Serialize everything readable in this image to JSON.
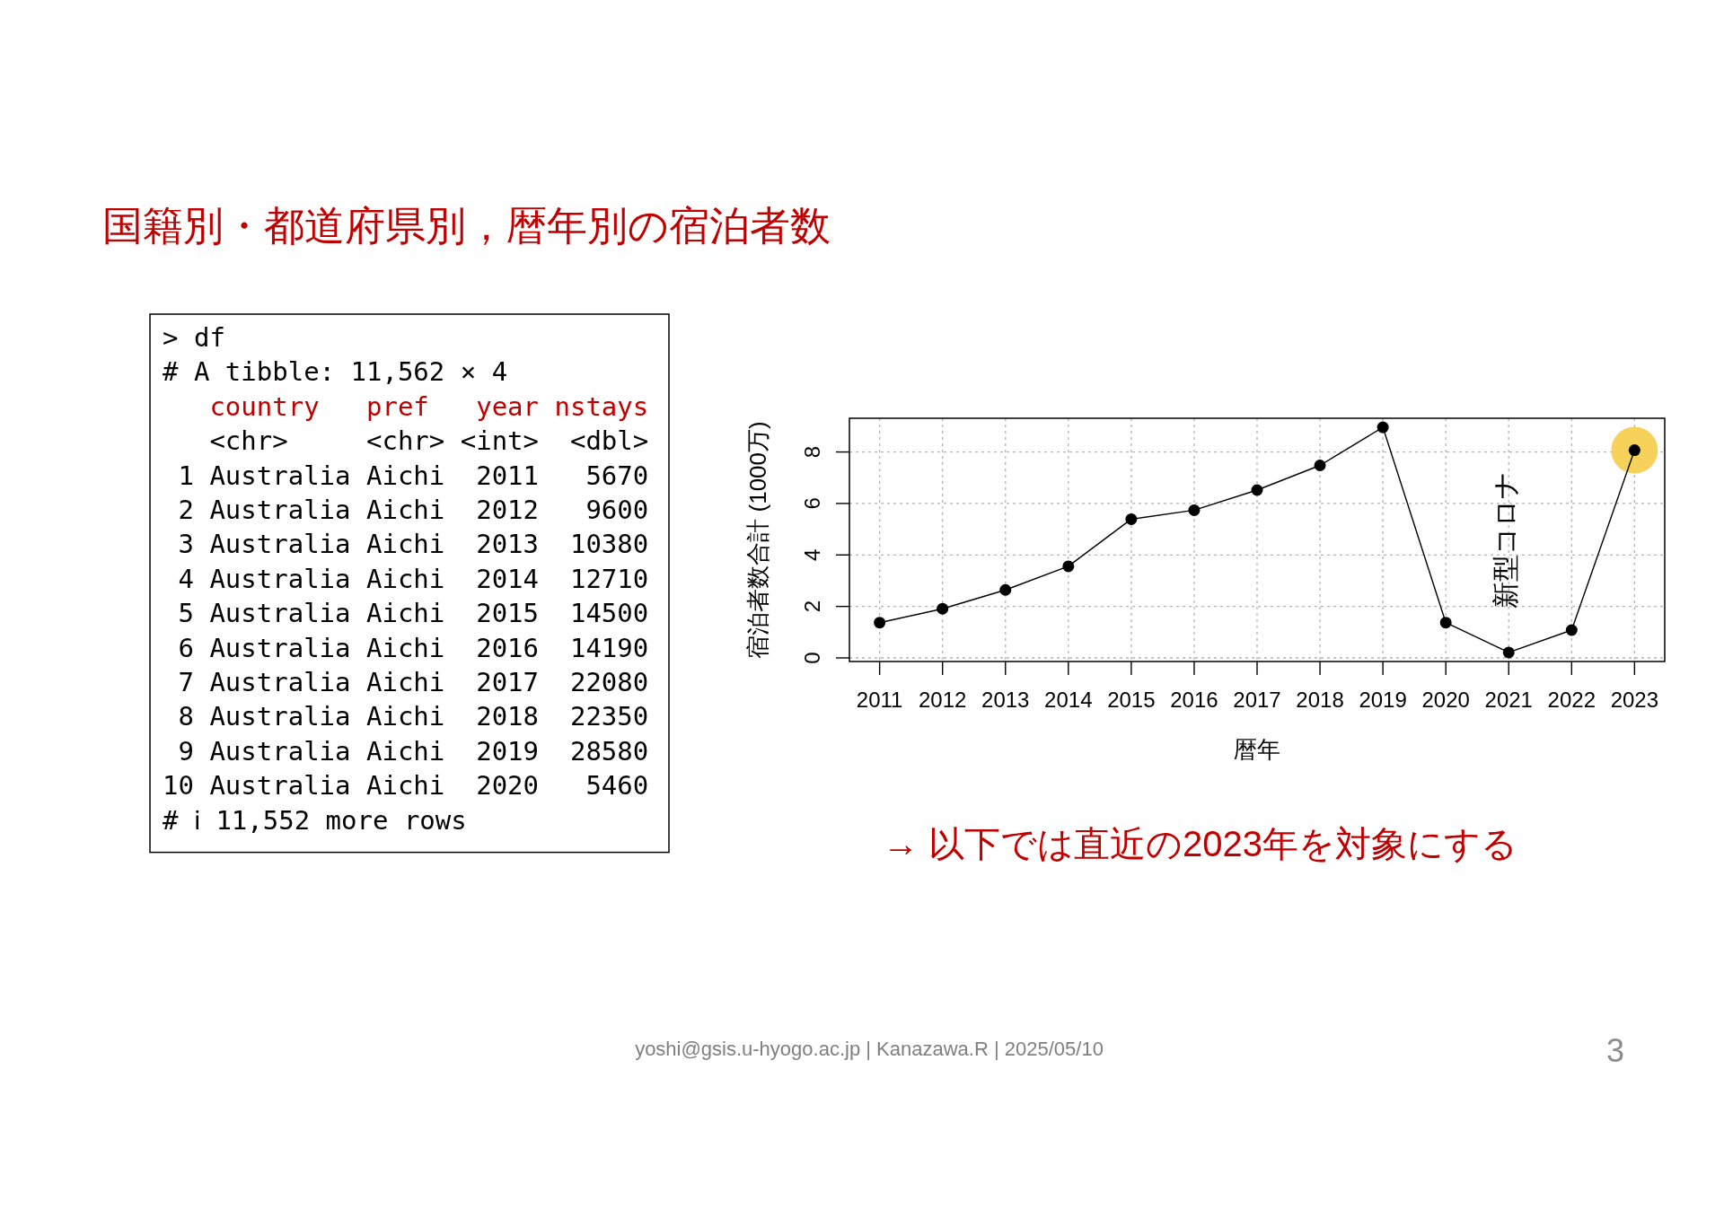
{
  "chart_data": [
    {
      "type": "other",
      "title": "国籍別・都道府県別，暦年別の宿泊者数",
      "annotations": [
        "> df",
        "# A tibble: 11,562 × 4",
        "   country   pref   year nstays",
        "   <chr>     <chr> <int>  <dbl>",
        " 1 Australia Aichi  2011   5670",
        " 2 Australia Aichi  2012   9600",
        " 3 Australia Aichi  2013  10380",
        " 4 Australia Aichi  2014  12710",
        " 5 Australia Aichi  2015  14500",
        " 6 Australia Aichi  2016  14190",
        " 7 Australia Aichi  2017  22080",
        " 8 Australia Aichi  2018  22350",
        " 9 Australia Aichi  2019  28580",
        "10 Australia Aichi  2020   5460",
        "# ℹ 11,552 more rows"
      ]
    },
    {
      "type": "line",
      "x": [
        2011,
        2012,
        2013,
        2014,
        2015,
        2016,
        2017,
        2018,
        2019,
        2020,
        2021,
        2022,
        2023
      ],
      "series": [
        {
          "type": "scatter",
          "color": "#f7d25a",
          "x": [
            2023
          ],
          "values": [
            8.07
          ]
        },
        {
          "color": "#000000",
          "values": [
            1.37,
            1.91,
            2.64,
            3.56,
            5.39,
            5.74,
            6.52,
            7.48,
            8.96,
            1.37,
            0.21,
            1.08,
            8.07
          ]
        }
      ],
      "xlabel": "暦年",
      "ylabel": "宿泊者数合計 (1000万)",
      "xlim": [
        2010.52,
        2023.48
      ],
      "ylim": [
        -0.14,
        9.31
      ],
      "xticks": [
        2011,
        2012,
        2013,
        2014,
        2015,
        2016,
        2017,
        2018,
        2019,
        2020,
        2021,
        2022,
        2023
      ],
      "yticks": [
        0,
        2,
        4,
        6,
        8
      ],
      "grid": true,
      "marker": "circle",
      "line_style": "solid",
      "annotations": [
        "新型コロナ",
        "→ 以下では直近の2023年を対象にする",
        "yoshi@gsis.u-hyogo.ac.jp | Kanazawa.R | 2025/05/10",
        "3"
      ]
    }
  ]
}
